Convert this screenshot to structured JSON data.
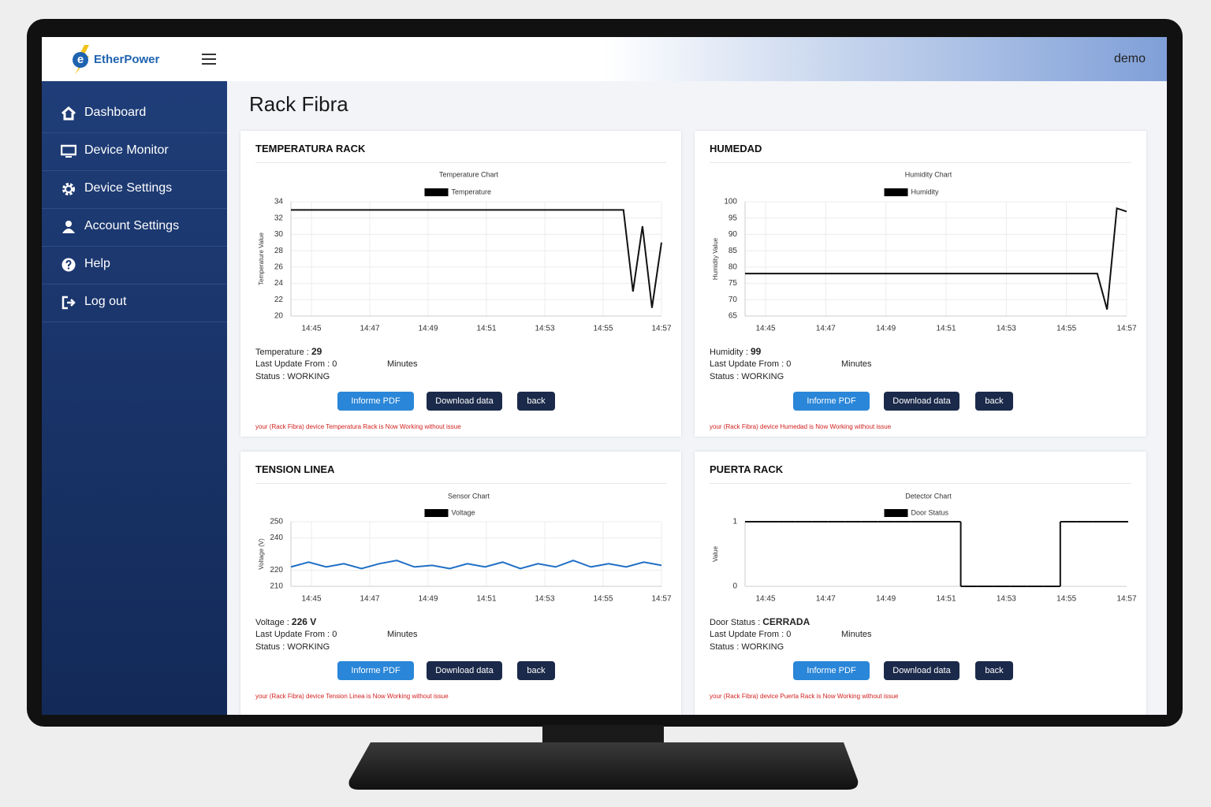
{
  "header": {
    "brand": "EtherPower",
    "user": "demo"
  },
  "menu": [
    "Dashboard",
    "Device Monitor",
    "Device Settings",
    "Account Settings",
    "Help",
    "Log out"
  ],
  "page_title": "Rack Fibra",
  "buttons": [
    "Informe PDF",
    "Download data",
    "back"
  ],
  "cards": [
    {
      "title": "TEMPERATURA RACK",
      "chart": {
        "type": "line",
        "title": "Temperature Chart",
        "ylabel": "Temperature Value",
        "xtick_labels": [
          "14:45",
          "14:47",
          "14:49",
          "14:51",
          "14:53",
          "14:55",
          "14:57"
        ],
        "ylim": [
          20,
          34
        ],
        "yticks": [
          20,
          22,
          24,
          26,
          28,
          30,
          32,
          34
        ],
        "grid": true,
        "series": [
          {
            "name": "Temperature",
            "color": "#111111",
            "values": [
              33,
              33,
              33,
              33,
              33,
              33,
              33,
              33,
              33,
              33,
              33,
              33,
              33,
              33,
              33,
              33,
              33,
              33,
              33,
              33,
              33,
              33,
              33,
              33,
              33,
              33,
              33,
              33,
              33,
              33,
              33,
              33,
              33,
              33,
              33,
              33,
              23,
              31,
              21,
              29
            ]
          }
        ]
      },
      "reading_label": "Temperature :",
      "reading_value": "29",
      "update": "Last Update From : 0",
      "update_unit": "Minutes",
      "status": "Status : WORKING",
      "message": "your (Rack Fibra) device Temperatura Rack is Now Working without issue"
    },
    {
      "title": "HUMEDAD",
      "chart": {
        "type": "line",
        "title": "Humidity Chart",
        "ylabel": "Humidity Value",
        "xtick_labels": [
          "14:45",
          "14:47",
          "14:49",
          "14:51",
          "14:53",
          "14:55",
          "14:57"
        ],
        "ylim": [
          65,
          100
        ],
        "yticks": [
          65,
          70,
          75,
          80,
          85,
          90,
          95,
          100
        ],
        "grid": true,
        "series": [
          {
            "name": "Humidity",
            "color": "#111111",
            "values": [
              78,
              78,
              78,
              78,
              78,
              78,
              78,
              78,
              78,
              78,
              78,
              78,
              78,
              78,
              78,
              78,
              78,
              78,
              78,
              78,
              78,
              78,
              78,
              78,
              78,
              78,
              78,
              78,
              78,
              78,
              78,
              78,
              78,
              78,
              78,
              78,
              78,
              67,
              98,
              97
            ]
          }
        ]
      },
      "reading_label": "Humidity :",
      "reading_value": "99",
      "update": "Last Update From : 0",
      "update_unit": "Minutes",
      "status": "Status : WORKING",
      "message": "your (Rack Fibra) device Humedad is Now Working without issue"
    },
    {
      "title": "TENSION LINEA",
      "chart": {
        "type": "line",
        "title": "Sensor Chart",
        "ylabel": "Voltage (V)",
        "xtick_labels": [
          "14:45",
          "14:47",
          "14:49",
          "14:51",
          "14:53",
          "14:55",
          "14:57"
        ],
        "ylim": [
          210,
          250
        ],
        "yticks": [
          210,
          220,
          240,
          250
        ],
        "grid": true,
        "series": [
          {
            "name": "Voltage",
            "color": "#1f6fc5",
            "values": [
              222,
              225,
              222,
              224,
              221,
              224,
              226,
              222,
              223,
              221,
              224,
              222,
              225,
              221,
              224,
              222,
              226,
              222,
              224,
              222,
              225,
              223
            ]
          }
        ]
      },
      "reading_label": "Voltage :",
      "reading_value": "226 V",
      "update": "Last Update From : 0",
      "update_unit": "Minutes",
      "status": "Status : WORKING",
      "message": "your (Rack Fibra) device Tension Linea is Now Working without issue"
    },
    {
      "title": "PUERTA RACK",
      "chart": {
        "type": "step",
        "title": "Detector Chart",
        "ylabel": "Value",
        "xtick_labels": [
          "14:45",
          "14:47",
          "14:49",
          "14:51",
          "14:53",
          "14:55",
          "14:57"
        ],
        "ylim": [
          0,
          1
        ],
        "yticks": [
          0,
          1
        ],
        "grid": false,
        "series": [
          {
            "name": "Door Status",
            "color": "#111111",
            "values": [
              1,
              1,
              1,
              1,
              1,
              1,
              1,
              1,
              1,
              1,
              1,
              1,
              1,
              0,
              0,
              0,
              0,
              0,
              0,
              1,
              1,
              1,
              1,
              1
            ]
          }
        ]
      },
      "reading_label": "Door Status :",
      "reading_value": "CERRADA",
      "update": "Last Update From : 0",
      "update_unit": "Minutes",
      "status": "Status : WORKING",
      "message": "your (Rack Fibra) device Puerta Rack is Now Working without issue"
    }
  ]
}
